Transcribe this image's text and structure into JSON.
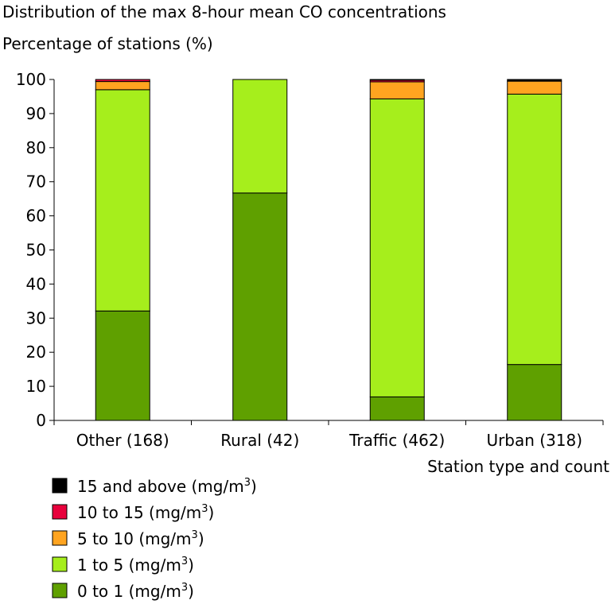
{
  "chart_data": {
    "type": "bar",
    "stacked": true,
    "title": "Distribution of the max 8-hour mean CO concentrations",
    "ylabel": "Percentage of stations (%)",
    "xlabel": "Station type and count",
    "ylim": [
      0,
      100
    ],
    "yticks": [
      0,
      10,
      20,
      30,
      40,
      50,
      60,
      70,
      80,
      90,
      100
    ],
    "categories": [
      "Other (168)",
      "Rural (42)",
      "Traffic (462)",
      "Urban (318)"
    ],
    "series": [
      {
        "name": "0 to 1 (mg/m",
        "sup": "3",
        "suffix": ")",
        "color": "#5fa000",
        "values": [
          32.1,
          66.7,
          6.9,
          16.4
        ]
      },
      {
        "name": "1 to 5 (mg/m",
        "sup": "3",
        "suffix": ")",
        "color": "#a6ee1c",
        "values": [
          64.9,
          33.3,
          87.4,
          79.3
        ]
      },
      {
        "name": "5 to 10 (mg/m",
        "sup": "3",
        "suffix": ")",
        "color": "#ffa420",
        "values": [
          2.4,
          0,
          5.0,
          3.8
        ]
      },
      {
        "name": "10 to 15 (mg/m",
        "sup": "3",
        "suffix": ")",
        "color": "#e8003c",
        "values": [
          0.6,
          0,
          0.5,
          0.0
        ]
      },
      {
        "name": "15 and above (mg/m",
        "sup": "3",
        "suffix": ")",
        "color": "#000000",
        "values": [
          0,
          0,
          0.2,
          0.5
        ]
      }
    ],
    "legend_order": [
      4,
      3,
      2,
      1,
      0
    ],
    "legend_placement": "bottom-left",
    "grid": false
  }
}
